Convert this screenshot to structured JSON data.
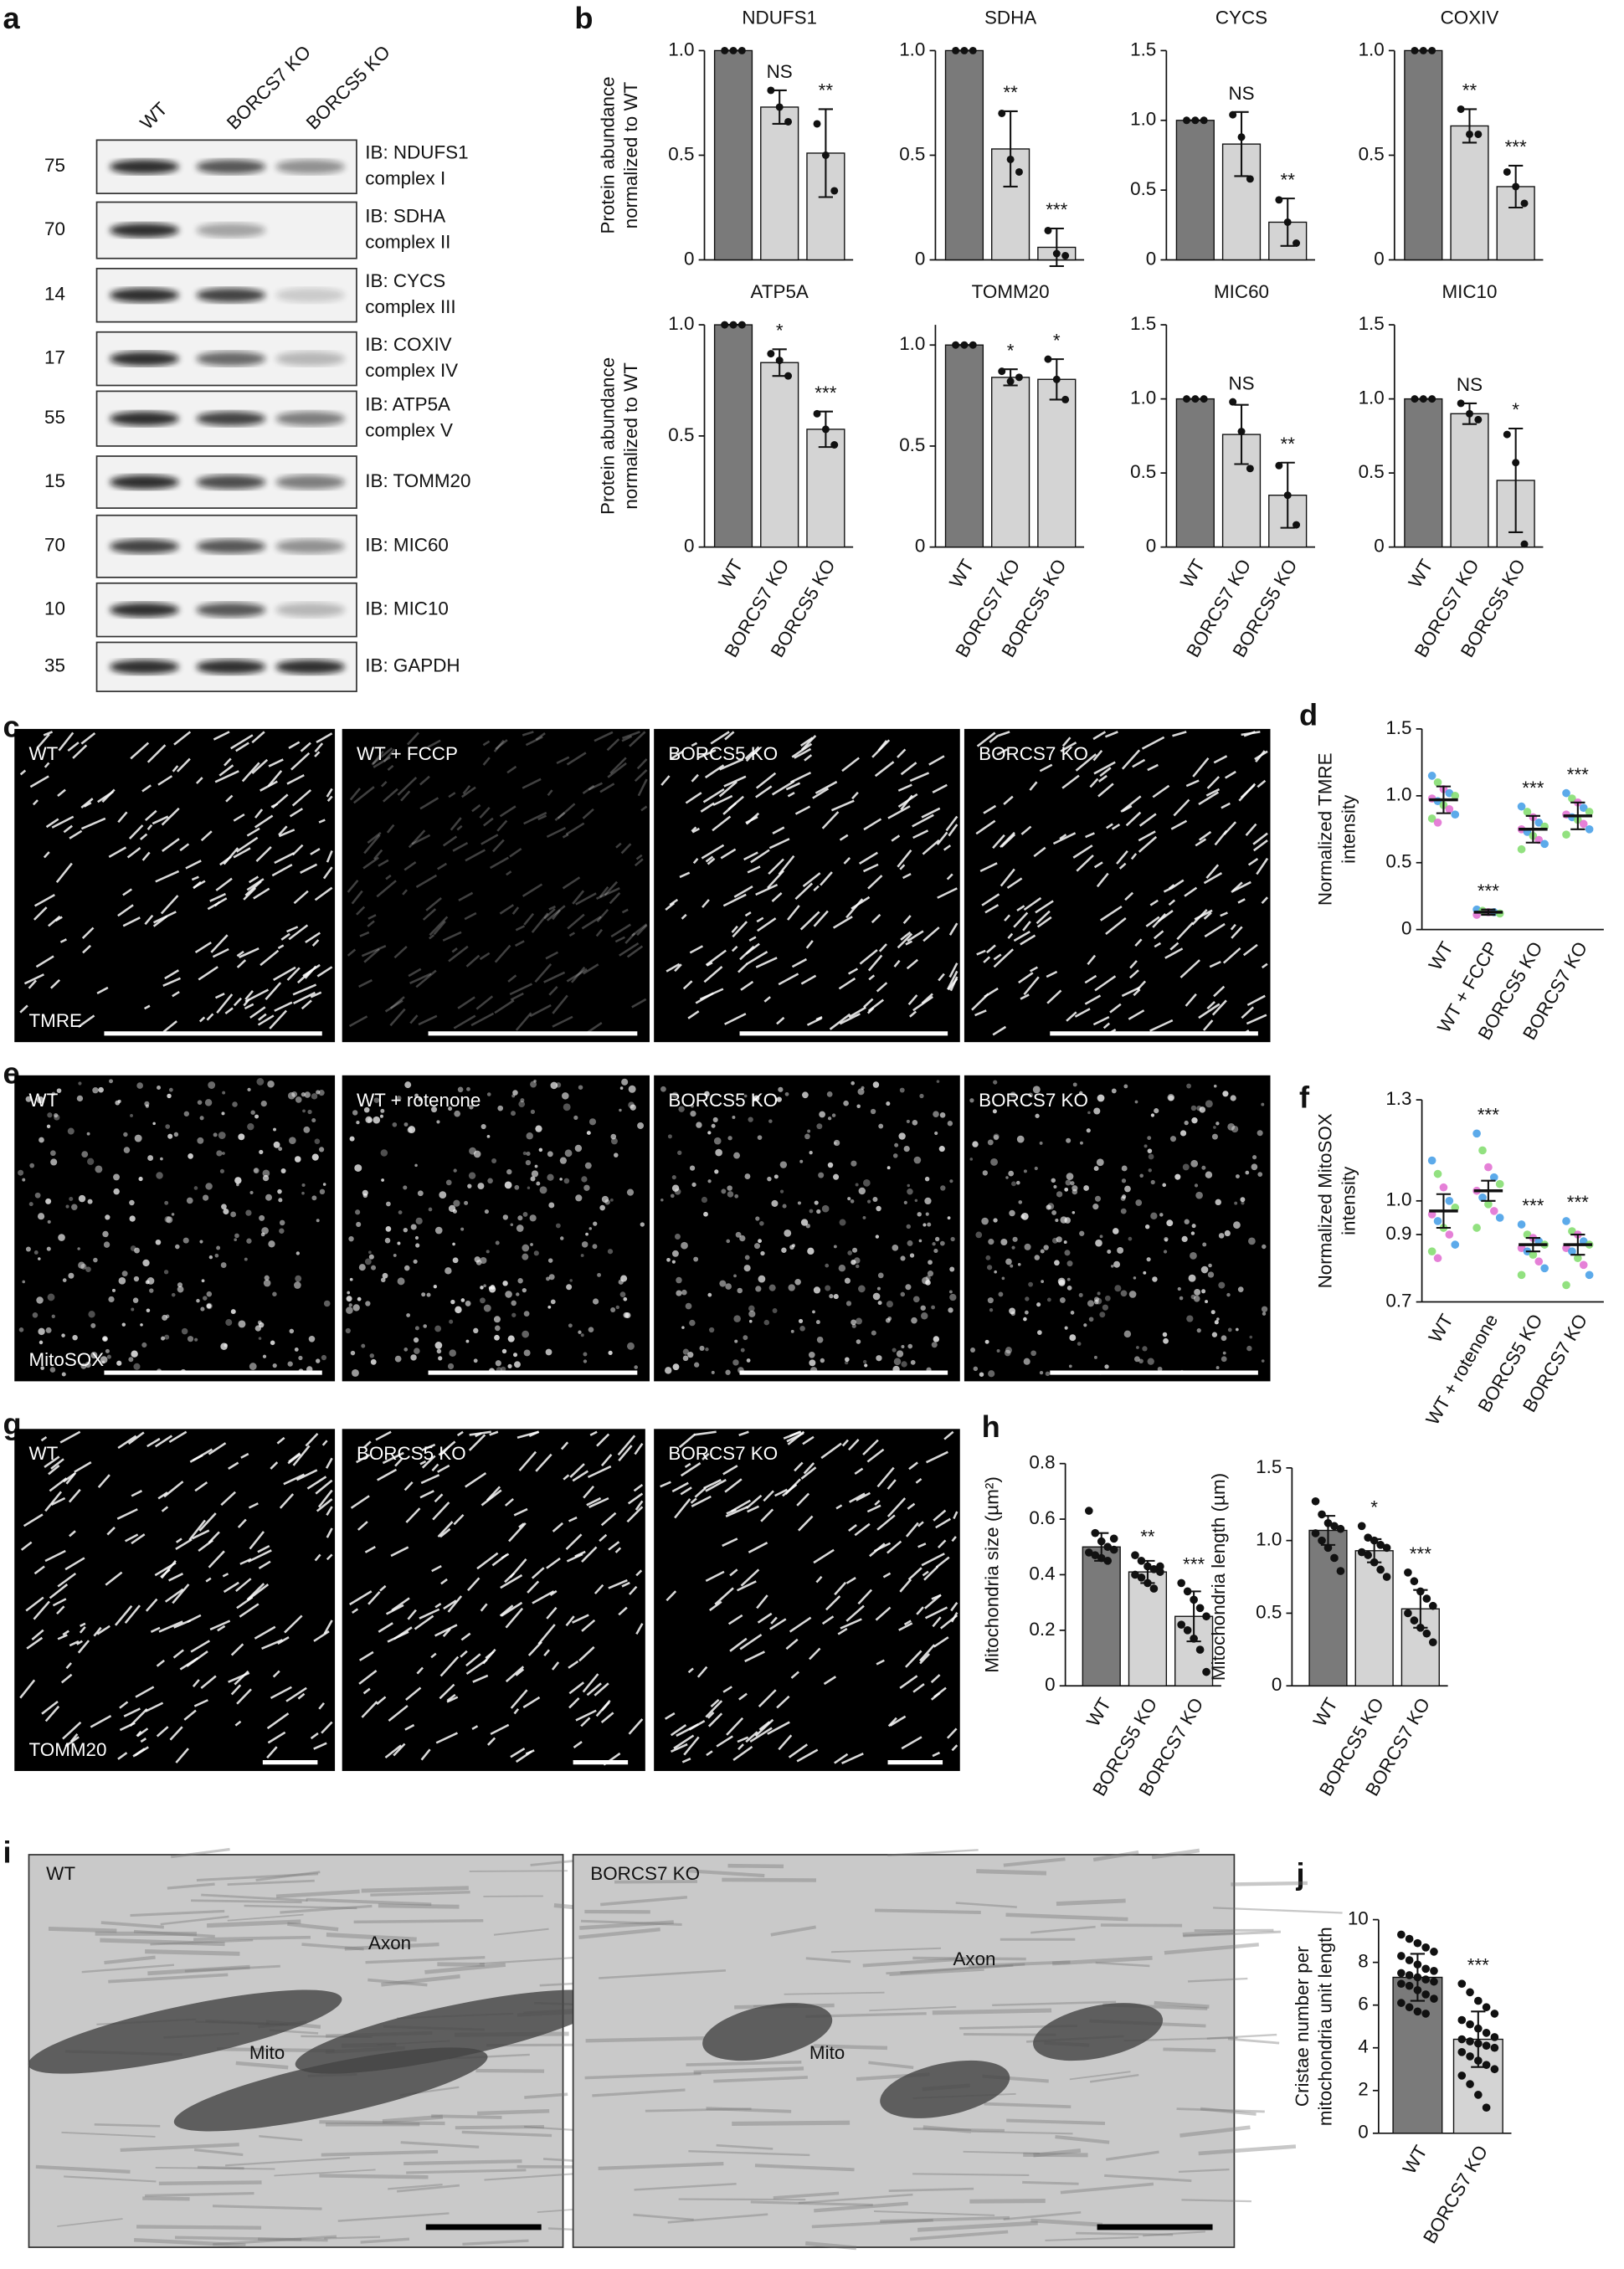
{
  "panel_labels": [
    "a",
    "b",
    "c",
    "d",
    "e",
    "f",
    "g",
    "h",
    "i",
    "j"
  ],
  "blot": {
    "lanes": [
      "WT",
      "BORCS7 KO",
      "BORCS5 KO"
    ],
    "rows": [
      {
        "marker": 75,
        "label": [
          "IB: NDUFS1",
          "complex I"
        ]
      },
      {
        "marker": 70,
        "label": [
          "IB: SDHA",
          "complex II"
        ]
      },
      {
        "marker": 14,
        "label": [
          "IB: CYCS",
          "complex III"
        ]
      },
      {
        "marker": 17,
        "label": [
          "IB: COXIV",
          "complex IV"
        ]
      },
      {
        "marker": 55,
        "label": [
          "IB: ATP5A",
          "complex V"
        ]
      },
      {
        "marker": 15,
        "label": [
          "IB: TOMM20"
        ]
      },
      {
        "marker": 70,
        "label": [
          "IB: MIC60"
        ]
      },
      {
        "marker": 10,
        "label": [
          "IB: MIC10"
        ]
      },
      {
        "marker": 35,
        "label": [
          "IB: GAPDH"
        ]
      }
    ]
  },
  "images": {
    "c": {
      "labels": [
        "WT",
        "WT + FCCP",
        "BORCS5 KO",
        "BORCS7 KO"
      ],
      "stain": "TMRE"
    },
    "e": {
      "labels": [
        "WT",
        "WT + rotenone",
        "BORCS5 KO",
        "BORCS7 KO"
      ],
      "stain": "MitoSOX"
    },
    "g": {
      "labels": [
        "WT",
        "BORCS5 KO",
        "BORCS7 KO"
      ],
      "stain": "TOMM20"
    },
    "i": {
      "labels": [
        "WT",
        "BORCS7 KO"
      ],
      "annotations": [
        [
          "Axon",
          "Mito"
        ],
        [
          "Axon",
          "Mito"
        ]
      ]
    }
  },
  "chart_data": [
    {
      "type": "bar",
      "title": "NDUFS1",
      "ylabel": [
        "Protein abundance",
        "normalized to WT"
      ],
      "values": [
        1,
        0.73,
        0.51
      ],
      "errors": [
        0,
        0.08,
        0.21
      ],
      "points": [
        [
          1,
          1,
          1
        ],
        [
          0.81,
          0.73,
          0.66
        ],
        [
          0.65,
          0.5,
          0.33
        ]
      ],
      "significance": [
        null,
        "NS",
        "**"
      ],
      "colors": [
        "#7a7a7a",
        "#d4d4d4",
        "#d4d4d4"
      ],
      "ylim": [
        0,
        1
      ],
      "yticks": [
        0,
        0.5,
        {
          "value": 1,
          "label": "1.0"
        }
      ]
    },
    {
      "type": "bar",
      "title": "SDHA",
      "values": [
        1,
        0.53,
        0.06
      ],
      "errors": [
        0,
        0.18,
        0.09
      ],
      "points": [
        [
          1,
          1,
          1
        ],
        [
          0.7,
          0.48,
          0.42
        ],
        [
          0.14,
          0.03,
          0.02
        ]
      ],
      "significance": [
        null,
        "**",
        "***"
      ],
      "colors": [
        "#7a7a7a",
        "#d4d4d4",
        "#d4d4d4"
      ],
      "ylim": [
        0,
        1
      ],
      "yticks": [
        0,
        0.5,
        {
          "value": 1,
          "label": "1.0"
        }
      ]
    },
    {
      "type": "bar",
      "title": "CYCS",
      "values": [
        1,
        0.83,
        0.27
      ],
      "errors": [
        0,
        0.23,
        0.17
      ],
      "points": [
        [
          1,
          1,
          1
        ],
        [
          1.04,
          0.88,
          0.58
        ],
        [
          0.43,
          0.27,
          0.12
        ]
      ],
      "significance": [
        null,
        "NS",
        "**"
      ],
      "colors": [
        "#7a7a7a",
        "#d4d4d4",
        "#d4d4d4"
      ],
      "ylim": [
        0,
        1.5
      ],
      "yticks": [
        0,
        0.5,
        {
          "value": 1,
          "label": "1.0"
        },
        1.5
      ]
    },
    {
      "type": "bar",
      "title": "COXIV",
      "values": [
        1,
        0.64,
        0.35
      ],
      "errors": [
        0,
        0.08,
        0.1
      ],
      "points": [
        [
          1,
          1,
          1
        ],
        [
          0.72,
          0.6,
          0.6
        ],
        [
          0.42,
          0.35,
          0.27
        ]
      ],
      "significance": [
        null,
        "**",
        "***"
      ],
      "colors": [
        "#7a7a7a",
        "#d4d4d4",
        "#d4d4d4"
      ],
      "ylim": [
        0,
        1
      ],
      "yticks": [
        0,
        0.5,
        {
          "value": 1,
          "label": "1.0"
        }
      ]
    },
    {
      "type": "bar",
      "title": "ATP5A",
      "ylabel": [
        "Protein abundance",
        "normalized to WT"
      ],
      "categories": [
        "WT",
        "BORCS7 KO",
        "BORCS5 KO"
      ],
      "values": [
        1,
        0.83,
        0.53
      ],
      "errors": [
        0,
        0.06,
        0.08
      ],
      "points": [
        [
          1,
          1,
          1
        ],
        [
          0.87,
          0.84,
          0.77
        ],
        [
          0.6,
          0.53,
          0.46
        ]
      ],
      "significance": [
        null,
        "*",
        "***"
      ],
      "colors": [
        "#7a7a7a",
        "#d4d4d4",
        "#d4d4d4"
      ],
      "ylim": [
        0,
        1
      ],
      "yticks": [
        0,
        0.5,
        {
          "value": 1,
          "label": "1.0"
        }
      ]
    },
    {
      "type": "bar",
      "title": "TOMM20",
      "categories": [
        "WT",
        "BORCS7 KO",
        "BORCS5 KO"
      ],
      "values": [
        1,
        0.84,
        0.83
      ],
      "errors": [
        0,
        0.04,
        0.1
      ],
      "points": [
        [
          1,
          1,
          1
        ],
        [
          0.87,
          0.82,
          0.84
        ],
        [
          0.93,
          0.83,
          0.73
        ]
      ],
      "significance": [
        null,
        "*",
        "*"
      ],
      "colors": [
        "#7a7a7a",
        "#d4d4d4",
        "#d4d4d4"
      ],
      "ylim": [
        0,
        1.1
      ],
      "yticks": [
        0,
        0.5,
        {
          "value": 1,
          "label": "1.0"
        }
      ]
    },
    {
      "type": "bar",
      "title": "MIC60",
      "categories": [
        "WT",
        "BORCS7 KO",
        "BORCS5 KO"
      ],
      "values": [
        1,
        0.76,
        0.35
      ],
      "errors": [
        0,
        0.2,
        0.22
      ],
      "points": [
        [
          1,
          1,
          1
        ],
        [
          0.98,
          0.78,
          0.53
        ],
        [
          0.55,
          0.35,
          0.15
        ]
      ],
      "significance": [
        null,
        "NS",
        "**"
      ],
      "colors": [
        "#7a7a7a",
        "#d4d4d4",
        "#d4d4d4"
      ],
      "ylim": [
        0,
        1.5
      ],
      "yticks": [
        0,
        0.5,
        {
          "value": 1,
          "label": "1.0"
        },
        1.5
      ]
    },
    {
      "type": "bar",
      "title": "MIC10",
      "categories": [
        "WT",
        "BORCS7 KO",
        "BORCS5 KO"
      ],
      "values": [
        1,
        0.9,
        0.45
      ],
      "errors": [
        0,
        0.07,
        0.35
      ],
      "points": [
        [
          1,
          1,
          1
        ],
        [
          0.97,
          0.9,
          0.86
        ],
        [
          0.76,
          0.57,
          0.02
        ]
      ],
      "significance": [
        null,
        "NS",
        "*"
      ],
      "colors": [
        "#7a7a7a",
        "#d4d4d4",
        "#d4d4d4"
      ],
      "ylim": [
        0,
        1.5
      ],
      "yticks": [
        0,
        0.5,
        {
          "value": 1,
          "label": "1.0"
        },
        1.5
      ]
    },
    {
      "type": "dotplot",
      "ylabel": [
        "Normalized TMRE",
        "intensity"
      ],
      "categories": [
        "WT",
        "WT + FCCP",
        "BORCS5 KO",
        "BORCS7 KO"
      ],
      "values": [
        0.97,
        0.13,
        0.75,
        0.85
      ],
      "errors": [
        0.1,
        0.02,
        0.1,
        0.1
      ],
      "points": [
        [
          1.15,
          1.1,
          1.05,
          1.02,
          1.0,
          0.98,
          0.96,
          0.93,
          0.9,
          0.86,
          0.83,
          0.8
        ],
        [
          0.15,
          0.14,
          0.13,
          0.13,
          0.12,
          0.11
        ],
        [
          0.92,
          0.88,
          0.84,
          0.8,
          0.77,
          0.75,
          0.73,
          0.7,
          0.67,
          0.64,
          0.6
        ],
        [
          1.02,
          0.98,
          0.95,
          0.91,
          0.88,
          0.86,
          0.84,
          0.82,
          0.79,
          0.75,
          0.71
        ]
      ],
      "point_colors": [
        "#3f9be6",
        "#7fdc6a",
        "#e06ad0"
      ],
      "significance": [
        null,
        "***",
        "***",
        "***"
      ],
      "ylim": [
        0,
        1.5
      ],
      "yticks": [
        0,
        0.5,
        {
          "value": 1,
          "label": "1.0"
        },
        1.5
      ]
    },
    {
      "type": "dotplot",
      "ylabel": [
        "Normalized MitoSOX",
        "intensity"
      ],
      "categories": [
        "WT",
        "WT + rotenone",
        "BORCS5 KO",
        "BORCS7 KO"
      ],
      "values": [
        0.97,
        1.03,
        0.87,
        0.87
      ],
      "errors": [
        0.05,
        0.03,
        0.02,
        0.03
      ],
      "points": [
        [
          1.12,
          1.08,
          1.04,
          1.0,
          0.98,
          0.96,
          0.94,
          0.92,
          0.9,
          0.87,
          0.85,
          0.83
        ],
        [
          1.2,
          1.15,
          1.1,
          1.07,
          1.05,
          1.03,
          1.01,
          0.99,
          0.97,
          0.95,
          0.92
        ],
        [
          0.93,
          0.9,
          0.89,
          0.88,
          0.87,
          0.86,
          0.85,
          0.84,
          0.82,
          0.8,
          0.78
        ],
        [
          0.94,
          0.91,
          0.9,
          0.88,
          0.87,
          0.86,
          0.85,
          0.83,
          0.81,
          0.78,
          0.75
        ]
      ],
      "point_colors": [
        "#3f9be6",
        "#7fdc6a",
        "#e06ad0"
      ],
      "significance": [
        null,
        "***",
        "***",
        "***"
      ],
      "ylim": [
        0.7,
        1.3
      ],
      "yticks": [
        0.7,
        0.9,
        {
          "value": 1,
          "label": "1.0"
        },
        1.3
      ]
    },
    {
      "type": "bar",
      "ylabel": [
        "Mitochondria size (µm²)"
      ],
      "categories": [
        "WT",
        "BORCS5 KO",
        "BORCS7 KO"
      ],
      "values": [
        0.5,
        0.41,
        0.25
      ],
      "errors": [
        0.05,
        0.04,
        0.09
      ],
      "points": [
        [
          0.63,
          0.55,
          0.52,
          0.5,
          0.49,
          0.48,
          0.47,
          0.46,
          0.45,
          0.53
        ],
        [
          0.47,
          0.45,
          0.43,
          0.42,
          0.41,
          0.4,
          0.39,
          0.37,
          0.35,
          0.43
        ],
        [
          0.37,
          0.34,
          0.31,
          0.28,
          0.25,
          0.22,
          0.2,
          0.17,
          0.13,
          0.05
        ]
      ],
      "significance": [
        null,
        "**",
        "***"
      ],
      "colors": [
        "#7a7a7a",
        "#d4d4d4",
        "#d4d4d4"
      ],
      "ylim": [
        0,
        0.8
      ],
      "yticks": [
        0,
        0.2,
        0.4,
        0.6,
        0.8
      ]
    },
    {
      "type": "bar",
      "ylabel": [
        "Mitochondria length (µm)"
      ],
      "categories": [
        "WT",
        "BORCS5 KO",
        "BORCS7 KO"
      ],
      "values": [
        1.07,
        0.93,
        0.53
      ],
      "errors": [
        0.1,
        0.08,
        0.13
      ],
      "points": [
        [
          1.27,
          1.18,
          1.12,
          1.1,
          1.08,
          1.05,
          1.0,
          0.95,
          0.88,
          0.79
        ],
        [
          1.1,
          1.02,
          1.0,
          0.97,
          0.95,
          0.92,
          0.9,
          0.85,
          0.8,
          0.75
        ],
        [
          0.78,
          0.72,
          0.65,
          0.6,
          0.55,
          0.5,
          0.45,
          0.4,
          0.36,
          0.3
        ]
      ],
      "significance": [
        null,
        "*",
        "***"
      ],
      "colors": [
        "#7a7a7a",
        "#d4d4d4",
        "#d4d4d4"
      ],
      "ylim": [
        0,
        1.5
      ],
      "yticks": [
        0,
        0.5,
        {
          "value": 1,
          "label": "1.0"
        },
        1.5
      ]
    },
    {
      "type": "bar",
      "ylabel": [
        "Cristae number per",
        "mitochondria unit length"
      ],
      "categories": [
        "WT",
        "BORCS7 KO"
      ],
      "values": [
        7.3,
        4.4
      ],
      "errors": [
        1.1,
        1.3
      ],
      "points": [
        [
          9.3,
          9.1,
          8.9,
          8.7,
          8.5,
          8.3,
          8.1,
          7.9,
          7.7,
          7.6,
          7.5,
          7.4,
          7.3,
          7.2,
          7.1,
          7.0,
          6.9,
          6.7,
          6.5,
          6.3,
          6.1,
          5.9,
          5.7,
          5.6
        ],
        [
          7.0,
          6.6,
          6.2,
          5.9,
          5.6,
          5.3,
          5.1,
          4.9,
          4.7,
          4.5,
          4.4,
          4.3,
          4.2,
          4.1,
          4.0,
          3.8,
          3.6,
          3.4,
          3.2,
          3.0,
          2.7,
          2.3,
          1.8,
          1.2
        ]
      ],
      "significance": [
        null,
        "***"
      ],
      "colors": [
        "#7a7a7a",
        "#d4d4d4"
      ],
      "ylim": [
        0,
        10
      ],
      "yticks": [
        0,
        2,
        4,
        6,
        8,
        10
      ]
    }
  ]
}
